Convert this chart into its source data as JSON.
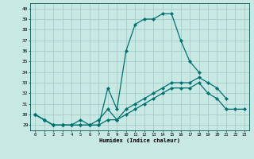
{
  "title": "",
  "xlabel": "Humidex (Indice chaleur)",
  "ylabel": "",
  "xlim": [
    -0.5,
    23.5
  ],
  "ylim": [
    28.5,
    40.5
  ],
  "yticks": [
    29,
    30,
    31,
    32,
    33,
    34,
    35,
    36,
    37,
    38,
    39,
    40
  ],
  "xticks": [
    0,
    1,
    2,
    3,
    4,
    5,
    6,
    7,
    8,
    9,
    10,
    11,
    12,
    13,
    14,
    15,
    16,
    17,
    18,
    19,
    20,
    21,
    22,
    23
  ],
  "bg_color": "#c8e8e4",
  "grid_color": "#9fc8c4",
  "line_color": "#007070",
  "line_width": 0.9,
  "marker": "D",
  "marker_size": 2.2,
  "lines": [
    {
      "x": [
        0,
        1,
        2,
        3,
        4,
        5,
        6,
        7,
        8,
        9,
        10,
        11,
        12,
        13,
        14,
        15,
        16,
        17,
        18
      ],
      "y": [
        30.0,
        29.5,
        29.0,
        29.0,
        29.0,
        29.0,
        29.0,
        29.0,
        32.5,
        30.5,
        36.0,
        38.5,
        39.0,
        39.0,
        39.5,
        39.5,
        37.0,
        35.0,
        34.0
      ]
    },
    {
      "x": [
        0,
        1,
        2,
        3,
        4,
        5,
        6,
        7,
        8,
        9,
        10,
        11,
        12,
        13,
        14,
        15,
        16,
        17,
        18,
        19,
        20,
        21
      ],
      "y": [
        30.0,
        29.5,
        29.0,
        29.0,
        29.0,
        29.5,
        29.0,
        29.5,
        30.5,
        29.5,
        30.5,
        31.0,
        31.5,
        32.0,
        32.5,
        33.0,
        33.0,
        33.0,
        33.5,
        33.0,
        32.5,
        31.5
      ]
    },
    {
      "x": [
        0,
        1,
        2,
        3,
        4,
        5,
        6,
        7,
        8,
        9,
        10,
        11,
        12,
        13,
        14,
        15,
        16,
        17,
        18,
        19,
        20,
        21,
        22,
        23
      ],
      "y": [
        30.0,
        29.5,
        29.0,
        29.0,
        29.0,
        29.0,
        29.0,
        29.0,
        29.5,
        29.5,
        30.0,
        30.5,
        31.0,
        31.5,
        32.0,
        32.5,
        32.5,
        32.5,
        33.0,
        32.0,
        31.5,
        30.5,
        30.5,
        30.5
      ]
    }
  ]
}
